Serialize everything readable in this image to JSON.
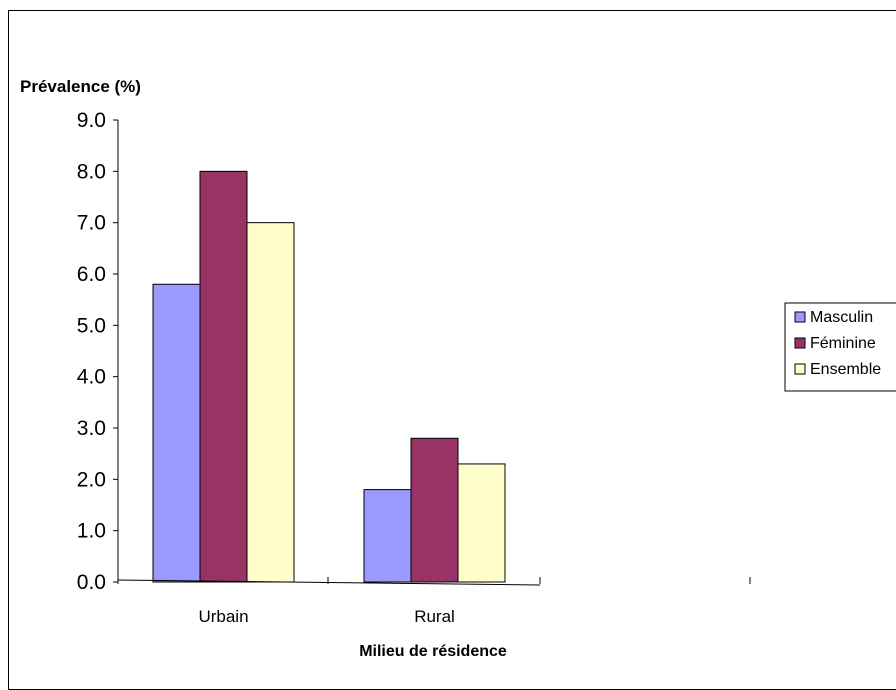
{
  "chart_data": {
    "type": "bar",
    "categories": [
      "Urbain",
      "Rural"
    ],
    "series": [
      {
        "name": "Masculin",
        "values": [
          5.8,
          1.8
        ],
        "color": "#9999ff"
      },
      {
        "name": "Féminine",
        "values": [
          8.0,
          2.8
        ],
        "color": "#993366"
      },
      {
        "name": "Ensemble",
        "values": [
          7.0,
          2.3
        ],
        "color": "#ffffcc"
      }
    ],
    "ylabel": "Prévalence (%)",
    "xlabel": "Milieu de résidence",
    "ylim": [
      0,
      9
    ],
    "yticks": [
      "0.0",
      "1.0",
      "2.0",
      "3.0",
      "4.0",
      "5.0",
      "6.0",
      "7.0",
      "8.0",
      "9.0"
    ],
    "legend_position": "right",
    "grid": false
  }
}
